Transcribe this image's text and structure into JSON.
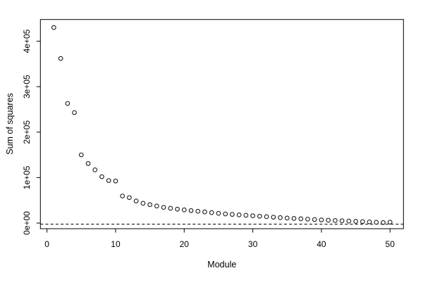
{
  "figure": {
    "background": "#ffffff",
    "foreground": "#000000",
    "marker": "open-circle",
    "marker_color": "#1c1c1c"
  },
  "chart_data": {
    "type": "scatter",
    "title": "",
    "xlabel": "Module",
    "ylabel": "Sum of squares",
    "x": [
      1,
      2,
      3,
      4,
      5,
      6,
      7,
      8,
      9,
      10,
      11,
      12,
      13,
      14,
      15,
      16,
      17,
      18,
      19,
      20,
      21,
      22,
      23,
      24,
      25,
      26,
      27,
      28,
      29,
      30,
      31,
      32,
      33,
      34,
      35,
      36,
      37,
      38,
      39,
      40,
      41,
      42,
      43,
      44,
      45,
      46,
      47,
      48,
      49,
      50
    ],
    "values": [
      430000,
      362000,
      263000,
      243000,
      150000,
      131000,
      117000,
      102000,
      93500,
      92500,
      59500,
      56000,
      48500,
      43500,
      40500,
      37500,
      34500,
      32500,
      30500,
      29000,
      27500,
      26000,
      24500,
      23000,
      21500,
      20000,
      19000,
      18000,
      17000,
      16000,
      15000,
      14000,
      13000,
      12000,
      11000,
      10200,
      9400,
      8600,
      7800,
      7000,
      6300,
      5600,
      5000,
      4400,
      3800,
      3200,
      2600,
      1700,
      1200,
      2000
    ],
    "x_ticks": {
      "values": [
        0,
        10,
        20,
        30,
        40,
        50
      ],
      "labels": [
        "0",
        "10",
        "20",
        "30",
        "40",
        "50"
      ]
    },
    "y_ticks": {
      "values": [
        0,
        100000,
        200000,
        300000,
        400000
      ],
      "labels": [
        "0e+00",
        "1e+05",
        "2e+05",
        "3e+05",
        "4e+05"
      ]
    },
    "xlim": [
      -0.96,
      51.96
    ],
    "ylim": [
      -12400,
      447700
    ],
    "reference_line": {
      "value": 0,
      "style": "dashed"
    },
    "grid": false,
    "legend": null
  }
}
